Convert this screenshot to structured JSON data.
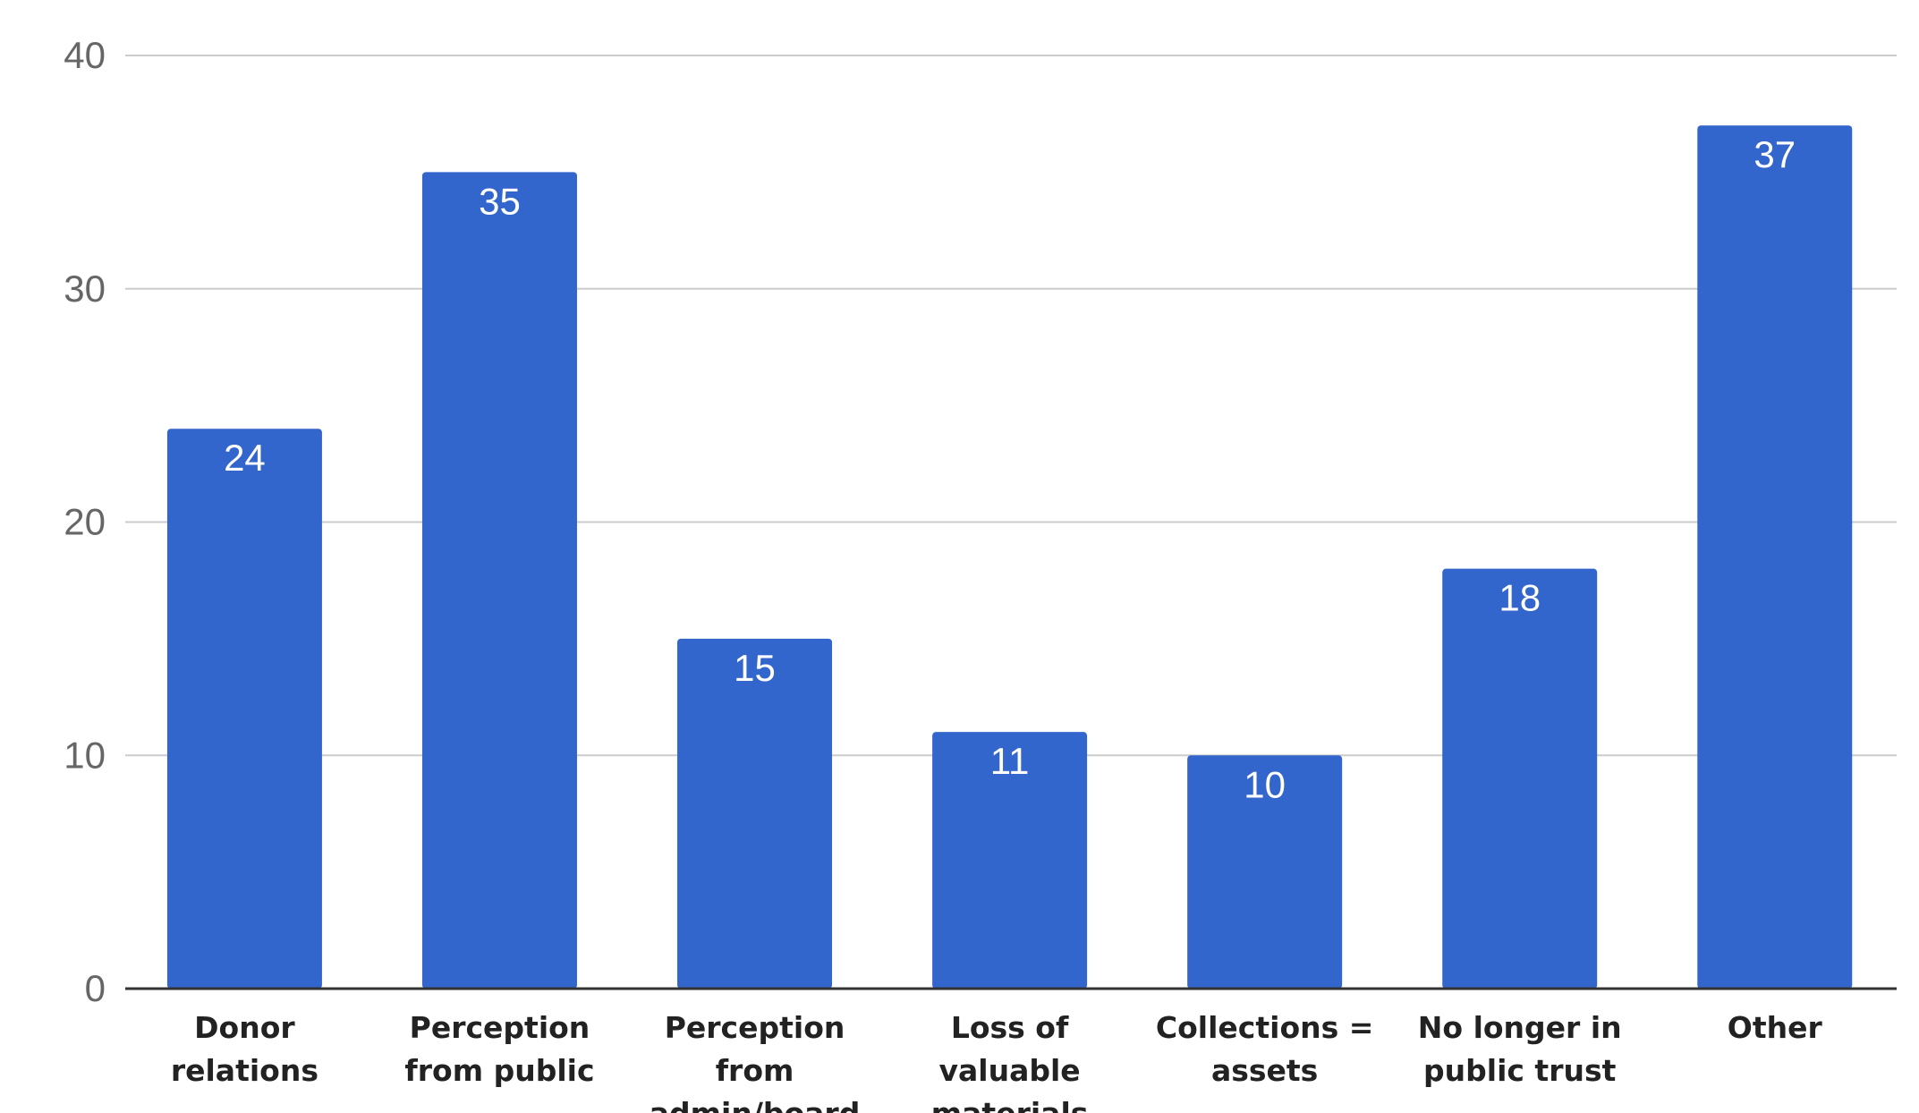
{
  "chart_data": {
    "type": "bar",
    "title": "",
    "xlabel": "",
    "ylabel": "",
    "categories": [
      [
        "Donor",
        "relations"
      ],
      [
        "Perception",
        "from public"
      ],
      [
        "Perception",
        "from",
        "admin/board"
      ],
      [
        "Loss of",
        "valuable",
        "materials"
      ],
      [
        "Collections =",
        "assets"
      ],
      [
        "No longer in",
        "public trust"
      ],
      [
        "Other"
      ]
    ],
    "values": [
      24,
      35,
      15,
      11,
      10,
      18,
      37
    ],
    "ylim": [
      0,
      40
    ],
    "yticks": [
      0,
      10,
      20,
      30,
      40
    ],
    "grid": true,
    "legend": "none",
    "data_labels": true,
    "colors": {
      "bar": "#3366cc",
      "grid": "#cccccc",
      "axis": "#333333"
    }
  }
}
